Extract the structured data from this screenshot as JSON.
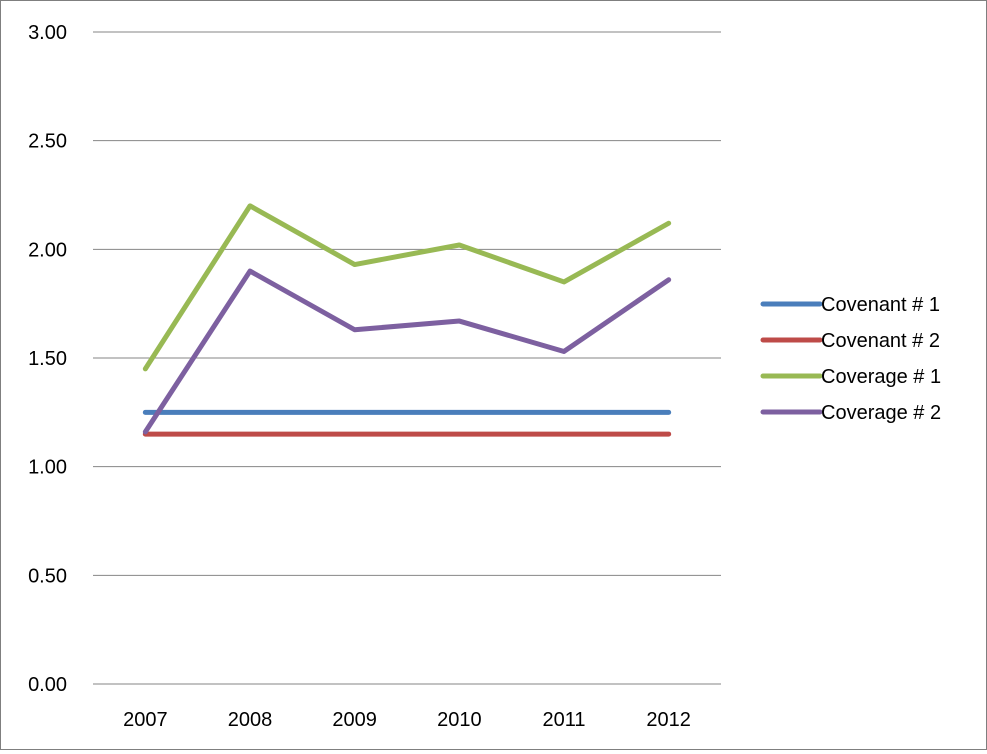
{
  "chart_data": {
    "type": "line",
    "title": "",
    "xlabel": "",
    "ylabel": "",
    "categories": [
      "2007",
      "2008",
      "2009",
      "2010",
      "2011",
      "2012"
    ],
    "ylim": [
      0,
      3
    ],
    "y_ticks": [
      "0.00",
      "0.50",
      "1.00",
      "1.50",
      "2.00",
      "2.50",
      "3.00"
    ],
    "grid": "horizontal",
    "legend_position": "right",
    "series": [
      {
        "name": "Covenant # 1",
        "color": "#4a7ebb",
        "values": [
          1.25,
          1.25,
          1.25,
          1.25,
          1.25,
          1.25
        ]
      },
      {
        "name": "Covenant # 2",
        "color": "#be4b48",
        "values": [
          1.15,
          1.15,
          1.15,
          1.15,
          1.15,
          1.15
        ]
      },
      {
        "name": "Coverage # 1",
        "color": "#98b954",
        "values": [
          1.45,
          2.2,
          1.93,
          2.02,
          1.85,
          2.12
        ]
      },
      {
        "name": "Coverage # 2",
        "color": "#7d60a0",
        "values": [
          1.16,
          1.9,
          1.63,
          1.67,
          1.53,
          1.86
        ]
      }
    ]
  }
}
